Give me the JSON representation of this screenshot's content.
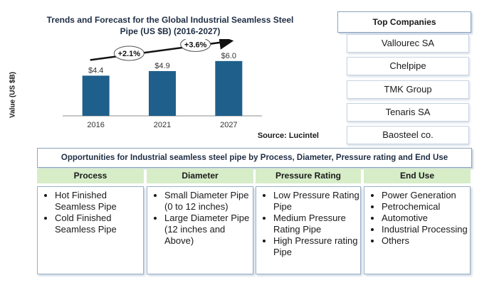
{
  "chart_data": {
    "type": "bar",
    "title": "Trends and Forecast for the Global Industrial Seamless Steel Pipe (US $B) (2016-2027)",
    "ylabel": "Value (US $B)",
    "categories": [
      "2016",
      "2021",
      "2027"
    ],
    "values": [
      4.4,
      4.9,
      6.0
    ],
    "value_labels": [
      "$4.4",
      "$4.9",
      "$6.0"
    ],
    "cagr": [
      "+2.1%",
      "+3.6%"
    ],
    "ylim": [
      0,
      7
    ],
    "bar_color": "#1f5f8b",
    "source": "Source: Lucintel"
  },
  "companies": {
    "title": "Top Companies",
    "items": [
      "Vallourec SA",
      "Chelpipe",
      "TMK Group",
      "Tenaris SA",
      "Baosteel co."
    ]
  },
  "opportunities": {
    "title": "Opportunities for  Industrial seamless steel pipe by Process, Diameter, Pressure rating and End Use",
    "columns": [
      {
        "header": "Process",
        "items": [
          "Hot Finished Seamless Pipe",
          "Cold Finished Seamless Pipe"
        ]
      },
      {
        "header": "Diameter",
        "items": [
          "Small Diameter Pipe (0 to 12 inches)",
          "Large Diameter Pipe (12 inches and Above)"
        ]
      },
      {
        "header": "Pressure Rating",
        "items": [
          "Low Pressure Rating Pipe",
          "Medium Pressure Rating Pipe",
          "High Pressure rating Pipe"
        ]
      },
      {
        "header": "End Use",
        "items": [
          "Power Generation",
          "Petrochemical",
          "Automotive",
          "Industrial Processing",
          "Others"
        ]
      }
    ]
  }
}
